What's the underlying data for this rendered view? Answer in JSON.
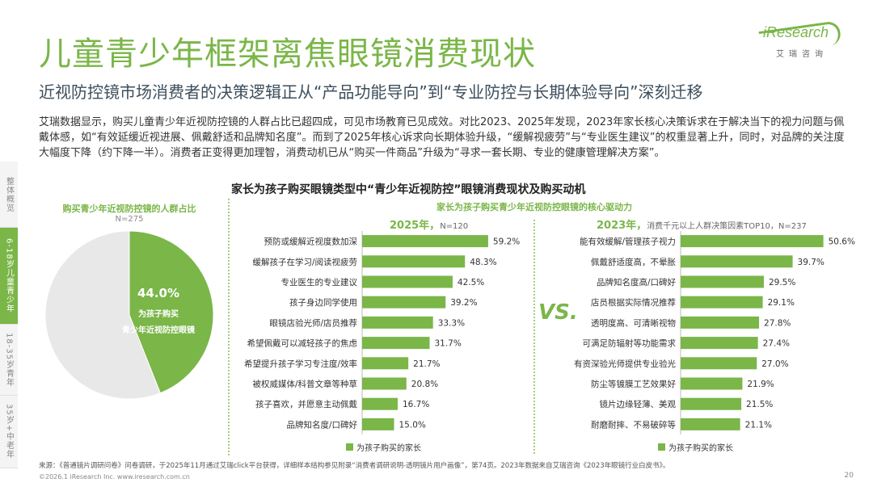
{
  "header": {
    "title": "儿童青少年框架离焦眼镜消费现状",
    "subtitle": "近视防控镜市场消费者的决策逻辑正从“产品功能导向”到“专业防控与长期体验导向”深刻迁移",
    "logo_text": "iResearch",
    "logo_sub": "艾瑞咨询"
  },
  "paragraph": "艾瑞数据显示，购买儿童青少年近视防控镜的人群占比已超四成，可见市场教育已见成效。对比2023、2025年发现，2023年家长核心决策诉求在于解决当下的视力问题与佩戴体感，如“有效延缓近视进展、佩戴舒适和品牌知名度”。而到了2025年核心诉求向长期体验升级，“缓解视疲劳”与“专业医生建议”的权重显著上升，同时，对品牌的关注度大幅度下降（约下降一半）。消费者正变得更加理智，消费动机已从“购买一件商品”升级为“寻求一套长期、专业的健康管理解决方案”。",
  "sidenav": [
    {
      "label": "整体概览",
      "active": false
    },
    {
      "label": "6-18岁儿童青少年",
      "active": true
    },
    {
      "label": "18-35岁青年",
      "active": false
    },
    {
      "label": "35岁+中老年",
      "active": false
    }
  ],
  "main_title": "家长为孩子购买眼镜类型中“青少年近视防控”眼镜消费现状及购买动机",
  "pie": {
    "title": "购买青少年近视防控镜的人群占比",
    "n": "N=275",
    "value_label": "44.0%",
    "desc1": "为孩子购买",
    "desc2": "青少年近视防控眼镜"
  },
  "drivers_title": "家长为孩子购买青少年近视防控眼镜的核心驱动力",
  "year2025": {
    "year": "2025年，",
    "n": "N=120"
  },
  "year2023": {
    "year": "2023年，",
    "n": "消费千元以上人群决策因素TOP10，N=237"
  },
  "vs": "VS.",
  "legend_label": "为孩子购买的家长",
  "footer": {
    "source": "来源：《普通镜片调研问卷》问卷调研，于2025年11月通过艾瑞click平台获得，详细样本结构参见附录“消费者调研说明-透明镜片用户画像”，第74页。2023年数据来自艾瑞咨询《2023年眼镜行业白皮书》。",
    "copyright": "©2026.1 iResearch Inc. www.iresearch.com.cn",
    "page": "20"
  },
  "colors": {
    "accent": "#7ab648",
    "pie_rest": "#e8e8e8",
    "text_dark": "#3d4e5c"
  },
  "chart_data": [
    {
      "type": "pie",
      "title": "购买青少年近视防控镜的人群占比",
      "slices": [
        {
          "label": "为孩子购买青少年近视防控眼镜",
          "value": 44.0
        },
        {
          "label": "",
          "value": 56.0
        }
      ]
    },
    {
      "type": "bar",
      "title": "2025年",
      "categories": [
        "预防或缓解近视度数加深",
        "缓解孩子在学习/阅读视疲劳",
        "专业医生的专业建议",
        "孩子身边同学使用",
        "眼镜店验光师/店员推荐",
        "希望佩戴可以减轻孩子的焦虑",
        "希望提升孩子学习专注度/效率",
        "被权威媒体/科普文章等种草",
        "孩子喜欢，并愿意主动佩戴",
        "品牌知名度/口碑好"
      ],
      "values": [
        59.2,
        48.3,
        42.5,
        39.2,
        33.3,
        31.7,
        21.7,
        20.8,
        16.7,
        15.0
      ],
      "value_labels": [
        "59.2%",
        "48.3%",
        "42.5%",
        "39.2%",
        "33.3%",
        "31.7%",
        "21.7%",
        "20.8%",
        "16.7%",
        "15.0%"
      ],
      "series": [
        {
          "name": "为孩子购买的家长"
        }
      ]
    },
    {
      "type": "bar",
      "title": "2023年",
      "categories": [
        "能有效缓解/管理孩子视力",
        "佩戴舒适度高，不晕胀",
        "品牌知名度高/口碑好",
        "店员根据实际情况推荐",
        "透明度高、可清晰视物",
        "可满足防辐射等功能需求",
        "有资深验光师提供专业验光",
        "防尘等镀膜工艺效果好",
        "镜片边缘轻薄、美观",
        "耐磨耐摔、不易破碎等"
      ],
      "values": [
        50.6,
        39.7,
        29.5,
        29.1,
        27.8,
        27.4,
        27.0,
        21.9,
        21.5,
        21.1
      ],
      "value_labels": [
        "50.6%",
        "39.7%",
        "29.5%",
        "29.1%",
        "27.8%",
        "27.4%",
        "27.0%",
        "21.9%",
        "21.5%",
        "21.1%"
      ],
      "series": [
        {
          "name": "为孩子购买的家长"
        }
      ]
    }
  ]
}
